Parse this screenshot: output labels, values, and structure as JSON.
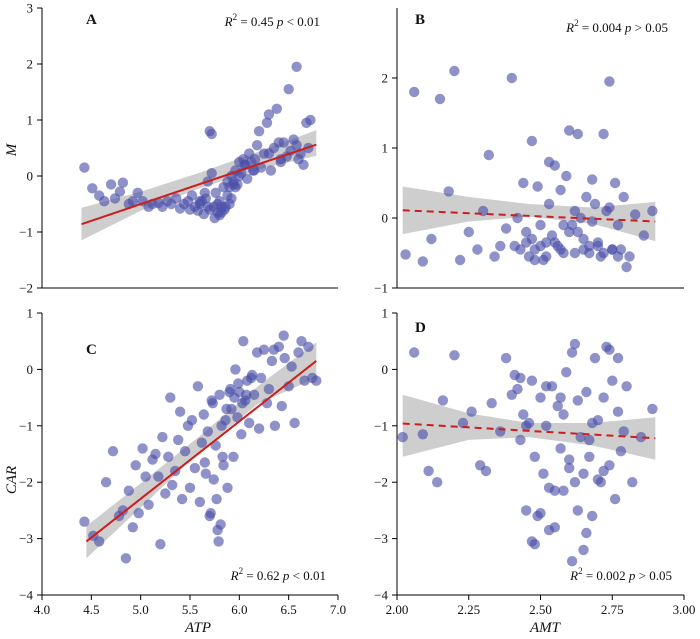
{
  "chart_data": [
    {
      "type": "scatter",
      "panel": "A",
      "xlabel": "",
      "ylabel": "M",
      "xlim": [
        4.0,
        7.0
      ],
      "ylim": [
        -2,
        3
      ],
      "yticks": [
        "3",
        "2",
        "1",
        "0",
        "−1",
        "−2"
      ],
      "annotation": {
        "r2": "0.45",
        "p": "0.01",
        "op": "<"
      },
      "fit": {
        "x": [
          4.4,
          6.78
        ],
        "y": [
          -0.86,
          0.56
        ],
        "dashed": false,
        "band": [
          [
            4.4,
            -1.15,
            -0.57
          ],
          [
            5.0,
            -0.62,
            -0.28
          ],
          [
            5.6,
            -0.22,
            0.06
          ],
          [
            6.2,
            0.12,
            0.44
          ],
          [
            6.78,
            0.36,
            0.82
          ]
        ]
      },
      "series": [
        {
          "x": [
            4.43,
            4.51,
            4.58,
            4.63,
            4.7,
            4.74,
            4.79,
            4.82,
            4.88,
            4.92,
            4.97,
            5.02,
            5.08,
            5.12,
            5.18,
            5.22,
            5.27,
            5.31,
            5.36,
            5.4,
            5.44,
            5.48,
            5.5,
            5.52,
            5.55,
            5.58,
            5.6,
            5.62,
            5.64,
            5.66,
            5.68,
            5.7,
            5.72,
            5.74,
            5.76,
            5.78,
            5.8,
            5.82,
            5.84,
            5.86,
            5.88,
            5.9,
            5.92,
            5.94,
            5.96,
            5.98,
            6.0,
            6.02,
            6.04,
            6.06,
            6.08,
            6.1,
            6.12,
            6.14,
            6.16,
            6.18,
            6.2,
            6.22,
            6.25,
            6.28,
            6.3,
            6.32,
            6.35,
            6.38,
            6.4,
            6.42,
            6.45,
            6.48,
            6.5,
            6.52,
            6.55,
            6.58,
            6.6,
            6.62,
            6.65,
            6.68,
            6.7,
            6.72,
            5.75,
            5.8,
            5.85,
            5.9,
            5.92,
            5.96,
            6.0,
            5.7,
            5.72,
            5.78,
            5.82,
            5.88,
            5.94,
            6.05,
            6.15,
            6.3,
            6.42,
            6.58,
            5.65,
            5.6,
            5.68
          ],
          "y": [
            0.15,
            -0.22,
            -0.35,
            -0.45,
            -0.15,
            -0.4,
            -0.28,
            -0.12,
            -0.5,
            -0.45,
            -0.3,
            -0.45,
            -0.55,
            -0.5,
            -0.48,
            -0.55,
            -0.45,
            -0.5,
            -0.4,
            -0.58,
            -0.5,
            -0.45,
            -0.6,
            -0.35,
            -0.55,
            -0.62,
            -0.5,
            -0.45,
            -0.68,
            -0.4,
            -0.55,
            -0.6,
            0.05,
            -0.55,
            -0.3,
            -0.5,
            -0.45,
            -0.65,
            -0.2,
            -0.55,
            -0.1,
            -0.2,
            0.0,
            -0.1,
            0.1,
            -0.15,
            0.25,
            0.05,
            0.3,
            0.2,
            -0.05,
            0.4,
            0.25,
            0.1,
            0.3,
            0.55,
            0.8,
            0.15,
            0.4,
            0.95,
            1.1,
            0.1,
            0.5,
            1.2,
            0.6,
            0.25,
            0.6,
            0.35,
            1.55,
            0.45,
            0.65,
            1.95,
            0.3,
            0.4,
            0.2,
            0.95,
            0.5,
            1.0,
            -0.75,
            -0.7,
            -0.6,
            -0.5,
            -0.4,
            -0.2,
            0.0,
            0.8,
            0.75,
            -0.65,
            -0.55,
            -0.35,
            -0.15,
            0.2,
            0.1,
            0.4,
            0.3,
            0.55,
            -0.3,
            -0.45,
            -0.1
          ]
        }
      ]
    },
    {
      "type": "scatter",
      "panel": "B",
      "xlabel": "",
      "ylabel": "",
      "xlim": [
        2.0,
        3.0
      ],
      "ylim": [
        -1,
        3
      ],
      "yticks": [
        "2",
        "1",
        "0",
        "−1"
      ],
      "annotation": {
        "r2": "0.004",
        "p": "0.05",
        "op": ">"
      },
      "fit": {
        "x": [
          2.02,
          2.9
        ],
        "y": [
          0.11,
          -0.05
        ],
        "dashed": true,
        "band": [
          [
            2.02,
            -0.23,
            0.45
          ],
          [
            2.25,
            -0.05,
            0.3
          ],
          [
            2.46,
            0.02,
            0.2
          ],
          [
            2.68,
            -0.08,
            0.15
          ],
          [
            2.9,
            -0.33,
            0.23
          ]
        ]
      },
      "series": [
        {
          "x": [
            2.03,
            2.06,
            2.09,
            2.12,
            2.15,
            2.18,
            2.2,
            2.22,
            2.25,
            2.28,
            2.3,
            2.32,
            2.34,
            2.36,
            2.38,
            2.4,
            2.41,
            2.42,
            2.43,
            2.44,
            2.45,
            2.46,
            2.47,
            2.48,
            2.49,
            2.5,
            2.51,
            2.52,
            2.53,
            2.54,
            2.55,
            2.56,
            2.57,
            2.58,
            2.59,
            2.6,
            2.61,
            2.62,
            2.63,
            2.64,
            2.65,
            2.66,
            2.67,
            2.68,
            2.69,
            2.7,
            2.71,
            2.72,
            2.73,
            2.74,
            2.75,
            2.76,
            2.77,
            2.78,
            2.79,
            2.8,
            2.81,
            2.83,
            2.86,
            2.89,
            2.45,
            2.5,
            2.55,
            2.6,
            2.65,
            2.7,
            2.75,
            2.47,
            2.52,
            2.57,
            2.62,
            2.67,
            2.72,
            2.77,
            2.58,
            2.63,
            2.68,
            2.74,
            2.48,
            2.53
          ],
          "y": [
            -0.52,
            1.8,
            -0.62,
            -0.3,
            1.7,
            0.38,
            2.1,
            -0.6,
            -0.2,
            -0.45,
            0.1,
            0.9,
            -0.55,
            -0.4,
            -0.15,
            2.0,
            -0.4,
            0.0,
            -0.45,
            0.5,
            -0.35,
            -0.55,
            1.1,
            -0.45,
            0.45,
            -0.1,
            -0.6,
            -0.55,
            0.8,
            -0.25,
            0.75,
            -0.4,
            0.4,
            -0.5,
            0.6,
            1.25,
            -0.1,
            0.1,
            1.2,
            0.0,
            -0.45,
            0.3,
            -0.5,
            0.55,
            0.2,
            -0.35,
            -0.55,
            1.2,
            0.1,
            1.95,
            -0.45,
            0.5,
            -0.1,
            -0.45,
            0.3,
            -0.7,
            -0.55,
            0.05,
            -0.25,
            0.1,
            -0.2,
            -0.4,
            -0.35,
            -0.2,
            -0.3,
            -0.4,
            -0.45,
            -0.3,
            -0.35,
            -0.45,
            -0.5,
            -0.4,
            -0.5,
            -0.55,
            -0.1,
            -0.2,
            -0.05,
            0.15,
            -0.6,
            0.2
          ]
        }
      ]
    },
    {
      "type": "scatter",
      "panel": "C",
      "xlabel": "ATP",
      "ylabel": "CAR",
      "xlim": [
        4.0,
        7.0
      ],
      "ylim": [
        -4,
        1
      ],
      "xticks": [
        "4.0",
        "4.5",
        "5.0",
        "5.5",
        "6.0",
        "6.5",
        "7.0"
      ],
      "yticks": [
        "1",
        "0",
        "−1",
        "−2",
        "−3",
        "−4"
      ],
      "annotation": {
        "r2": "0.62",
        "p": "0.01",
        "op": "<"
      },
      "fit": {
        "x": [
          4.45,
          6.78
        ],
        "y": [
          -3.05,
          0.15
        ],
        "dashed": false,
        "band": [
          [
            4.45,
            -3.35,
            -2.78
          ],
          [
            5.0,
            -2.45,
            -2.02
          ],
          [
            5.6,
            -1.45,
            -1.18
          ],
          [
            6.2,
            -0.6,
            -0.28
          ],
          [
            6.78,
            -0.15,
            0.48
          ]
        ]
      },
      "series": [
        {
          "x": [
            4.43,
            4.52,
            4.58,
            4.65,
            4.72,
            4.78,
            4.82,
            4.85,
            4.88,
            4.92,
            4.95,
            4.98,
            5.02,
            5.05,
            5.08,
            5.12,
            5.15,
            5.18,
            5.2,
            5.22,
            5.25,
            5.28,
            5.3,
            5.32,
            5.35,
            5.38,
            5.4,
            5.42,
            5.45,
            5.48,
            5.5,
            5.52,
            5.55,
            5.58,
            5.6,
            5.62,
            5.64,
            5.66,
            5.68,
            5.7,
            5.72,
            5.74,
            5.76,
            5.78,
            5.8,
            5.82,
            5.84,
            5.86,
            5.88,
            5.9,
            5.92,
            5.94,
            5.96,
            5.98,
            6.0,
            6.02,
            6.04,
            6.06,
            6.08,
            6.1,
            6.12,
            6.15,
            6.18,
            6.2,
            6.22,
            6.25,
            6.28,
            6.3,
            6.33,
            6.36,
            6.4,
            6.43,
            6.46,
            6.5,
            6.53,
            6.56,
            6.6,
            6.63,
            6.66,
            6.7,
            6.74,
            6.78,
            5.77,
            5.79,
            5.81,
            5.83,
            5.87,
            5.91,
            5.95,
            5.99,
            6.03,
            6.07,
            5.65,
            5.71,
            5.73,
            6.13,
            6.35,
            6.45
          ],
          "y": [
            -2.7,
            -2.95,
            -3.05,
            -2.0,
            -1.45,
            -2.6,
            -2.5,
            -3.35,
            -2.15,
            -2.8,
            -1.7,
            -2.55,
            -1.4,
            -1.9,
            -2.4,
            -1.6,
            -1.5,
            -1.9,
            -3.1,
            -1.2,
            -2.2,
            -1.55,
            -0.5,
            -2.05,
            -1.8,
            -1.25,
            -0.75,
            -2.3,
            -1.45,
            -1.0,
            -2.1,
            -0.9,
            -1.75,
            -0.3,
            -2.35,
            -1.3,
            -0.8,
            -1.85,
            -1.1,
            -2.6,
            -0.55,
            -1.95,
            -1.35,
            -2.85,
            -0.45,
            -1.0,
            -1.7,
            -0.9,
            -2.1,
            -0.4,
            -0.7,
            -1.55,
            0.0,
            -0.85,
            -0.4,
            -1.15,
            0.5,
            -0.55,
            -0.2,
            -0.95,
            -0.15,
            -0.45,
            0.3,
            -1.05,
            -0.15,
            0.35,
            -0.6,
            -0.35,
            0.15,
            -1.0,
            0.4,
            -0.65,
            0.2,
            -0.3,
            0.05,
            -0.95,
            0.3,
            0.5,
            -0.2,
            0.4,
            -0.15,
            -0.2,
            -2.3,
            -3.05,
            -2.75,
            -1.55,
            -0.7,
            -0.35,
            -0.5,
            -0.25,
            -0.6,
            -0.45,
            -1.65,
            -2.55,
            -0.6,
            -0.1,
            0.35,
            0.6
          ]
        }
      ]
    },
    {
      "type": "scatter",
      "panel": "D",
      "xlabel": "AMT",
      "ylabel": "",
      "xlim": [
        2.0,
        3.0
      ],
      "ylim": [
        -4,
        1
      ],
      "xticks": [
        "2.00",
        "2.25",
        "2.50",
        "2.75",
        "3.00"
      ],
      "yticks": [
        "1",
        "0",
        "−1",
        "−2",
        "−3",
        "−4"
      ],
      "annotation": {
        "r2": "0.002",
        "p": "0.05",
        "op": ">"
      },
      "fit": {
        "x": [
          2.02,
          2.9
        ],
        "y": [
          -0.96,
          -1.22
        ],
        "dashed": true,
        "band": [
          [
            2.02,
            -1.55,
            -0.45
          ],
          [
            2.25,
            -1.25,
            -0.78
          ],
          [
            2.46,
            -1.2,
            -0.95
          ],
          [
            2.68,
            -1.35,
            -0.95
          ],
          [
            2.9,
            -1.6,
            -0.85
          ]
        ]
      },
      "series": [
        {
          "x": [
            2.02,
            2.06,
            2.09,
            2.11,
            2.14,
            2.16,
            2.2,
            2.23,
            2.26,
            2.29,
            2.31,
            2.33,
            2.36,
            2.38,
            2.4,
            2.41,
            2.42,
            2.43,
            2.44,
            2.45,
            2.46,
            2.47,
            2.48,
            2.49,
            2.5,
            2.51,
            2.52,
            2.53,
            2.54,
            2.55,
            2.56,
            2.57,
            2.58,
            2.59,
            2.6,
            2.61,
            2.62,
            2.63,
            2.64,
            2.65,
            2.66,
            2.67,
            2.68,
            2.69,
            2.7,
            2.71,
            2.72,
            2.73,
            2.74,
            2.75,
            2.76,
            2.77,
            2.78,
            2.79,
            2.8,
            2.82,
            2.85,
            2.89,
            2.45,
            2.5,
            2.55,
            2.6,
            2.65,
            2.7,
            2.47,
            2.52,
            2.57,
            2.62,
            2.67,
            2.72,
            2.77,
            2.58,
            2.63,
            2.68,
            2.74,
            2.48,
            2.53,
            2.43,
            2.61,
            2.66
          ],
          "y": [
            -1.2,
            0.3,
            -1.15,
            -1.8,
            -2.0,
            -0.55,
            0.25,
            -0.95,
            -0.75,
            -1.7,
            -1.8,
            -0.6,
            -1.1,
            0.2,
            -0.45,
            -0.1,
            -0.35,
            -1.25,
            -0.8,
            -2.5,
            -0.95,
            -3.05,
            -1.55,
            -2.6,
            -0.5,
            -1.85,
            -1.0,
            -2.1,
            -0.3,
            -2.8,
            -0.65,
            -1.4,
            -2.15,
            -0.05,
            -1.75,
            0.3,
            -2.0,
            -0.55,
            -1.2,
            -3.2,
            -0.4,
            -1.55,
            -2.6,
            0.2,
            -0.9,
            -2.0,
            -0.5,
            0.4,
            -1.7,
            -0.2,
            -2.3,
            -0.75,
            -1.45,
            -1.1,
            -0.3,
            -2.0,
            -1.2,
            -0.7,
            -1.0,
            -2.55,
            -2.15,
            -1.6,
            -1.85,
            -1.95,
            -0.2,
            -0.3,
            -0.5,
            0.45,
            -1.25,
            -1.8,
            0.2,
            -0.8,
            -2.5,
            -0.95,
            0.35,
            -3.1,
            -2.85,
            -0.15,
            -3.4,
            -2.9
          ]
        }
      ]
    }
  ]
}
